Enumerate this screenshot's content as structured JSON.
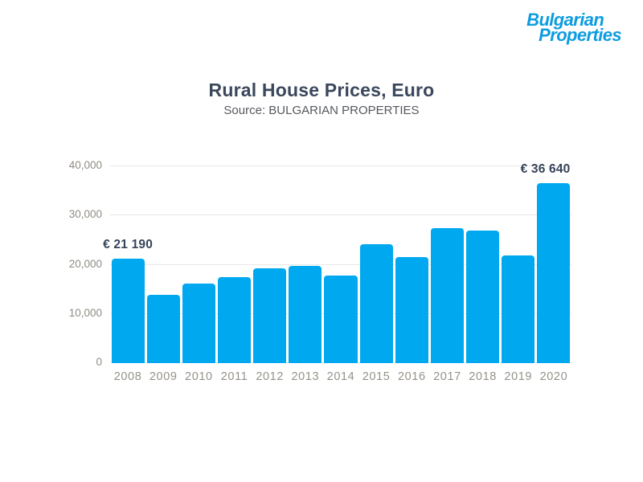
{
  "logo": {
    "line1": "Bulgarian",
    "line2": "Properties",
    "color": "#0d9cdf"
  },
  "header": {
    "title": "Rural House Prices, Euro",
    "subtitle": "Source: BULGARIAN PROPERTIES"
  },
  "chart_data": {
    "type": "bar",
    "title": "Rural House Prices, Euro",
    "subtitle": "Source: BULGARIAN PROPERTIES",
    "categories": [
      "2008",
      "2009",
      "2010",
      "2011",
      "2012",
      "2013",
      "2014",
      "2015",
      "2016",
      "2017",
      "2018",
      "2019",
      "2020"
    ],
    "values": [
      21190,
      13900,
      16200,
      17400,
      19200,
      19700,
      17800,
      24100,
      21500,
      27500,
      26900,
      21800,
      36640
    ],
    "xlabel": "",
    "ylabel": "",
    "ylim": [
      0,
      40000
    ],
    "yticks": [
      {
        "value": 0,
        "label": "0"
      },
      {
        "value": 10000,
        "label": "10,000"
      },
      {
        "value": 20000,
        "label": "20,000"
      },
      {
        "value": 30000,
        "label": "30,000"
      },
      {
        "value": 40000,
        "label": "40,000"
      }
    ],
    "grid": "horizontal",
    "legend": "none",
    "bar_color": "#00a8f0",
    "annotations": [
      {
        "category": "2008",
        "text": "€ 21 190",
        "align": "center"
      },
      {
        "category": "2020",
        "text": "€ 36 640",
        "align": "right-edge"
      }
    ]
  },
  "colors": {
    "bar": "#00a8f0",
    "logo_blue": "#0d9cdf",
    "title_navy": "#3a475c",
    "subtitle_gray": "#55585d",
    "axis_label_gray": "#96928a",
    "gridline": "#e8e8e8",
    "background": "#ffffff"
  }
}
